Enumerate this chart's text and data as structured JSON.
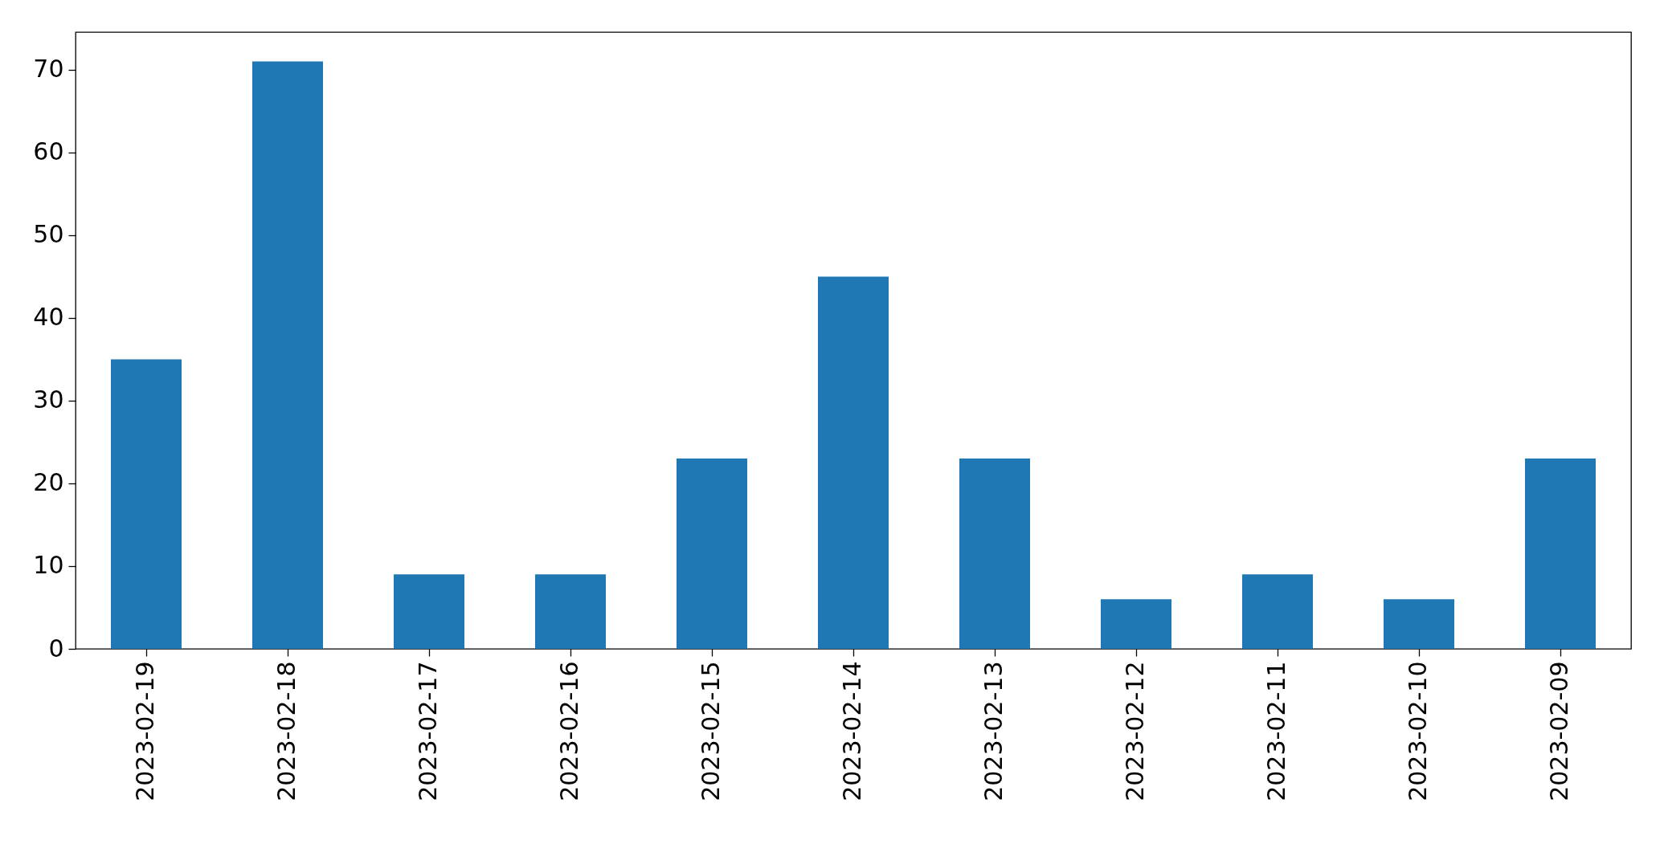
{
  "chart_data": {
    "type": "bar",
    "categories": [
      "2023-02-19",
      "2023-02-18",
      "2023-02-17",
      "2023-02-16",
      "2023-02-15",
      "2023-02-14",
      "2023-02-13",
      "2023-02-12",
      "2023-02-11",
      "2023-02-10",
      "2023-02-09"
    ],
    "values": [
      35,
      71,
      9,
      9,
      23,
      45,
      23,
      6,
      9,
      6,
      23
    ],
    "color": "#1f77b4",
    "ylim": [
      0,
      74.55
    ],
    "yticks": [
      0,
      10,
      20,
      30,
      40,
      50,
      60,
      70
    ],
    "grid": false,
    "legend": false
  }
}
